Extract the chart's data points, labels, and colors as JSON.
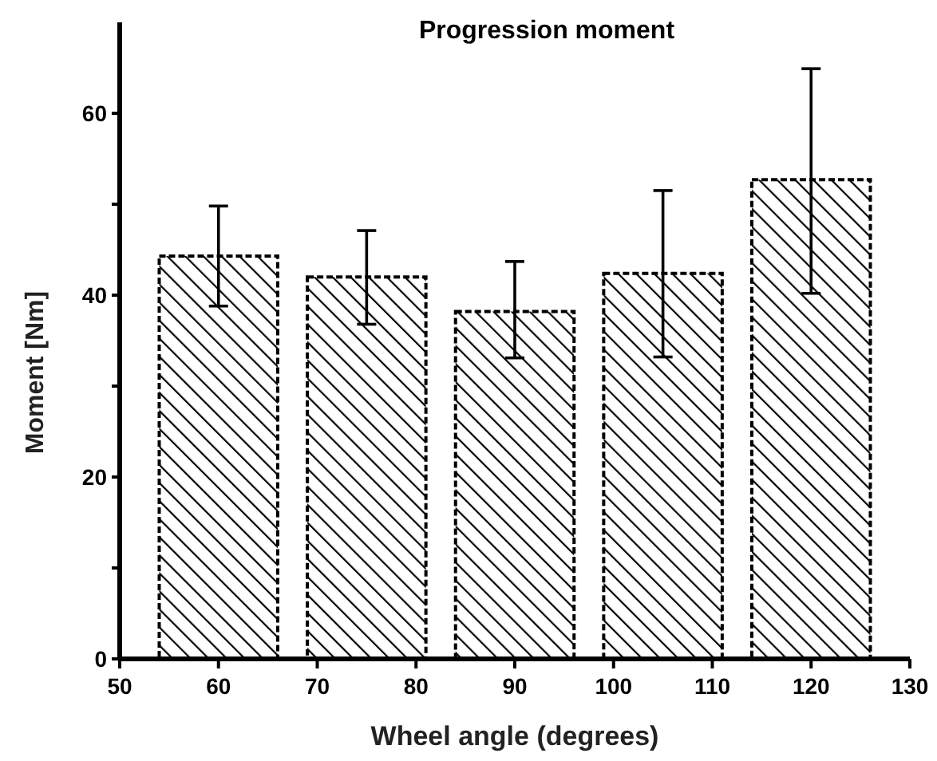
{
  "chart_data": {
    "type": "bar",
    "title": "Progression moment",
    "xlabel": "Wheel angle (degrees)",
    "ylabel": "Moment [Nm]",
    "x": [
      60,
      75,
      90,
      105,
      120
    ],
    "values": [
      44.3,
      42.0,
      38.2,
      42.4,
      52.7
    ],
    "errors": [
      [
        38.8,
        49.8
      ],
      [
        36.8,
        47.1
      ],
      [
        33.1,
        43.7
      ],
      [
        33.2,
        51.5
      ],
      [
        40.2,
        64.9
      ]
    ],
    "color": "#000000",
    "xlim": [
      50,
      130
    ],
    "xticks": [
      50,
      60,
      70,
      80,
      90,
      100,
      110,
      120,
      130
    ],
    "ylim": [
      0,
      70
    ],
    "yticks": [
      0,
      {
        "value": 10,
        "label": null
      },
      20,
      {
        "value": 30,
        "label": null
      },
      40,
      {
        "value": 50,
        "label": null
      },
      60
    ],
    "grid": false
  }
}
